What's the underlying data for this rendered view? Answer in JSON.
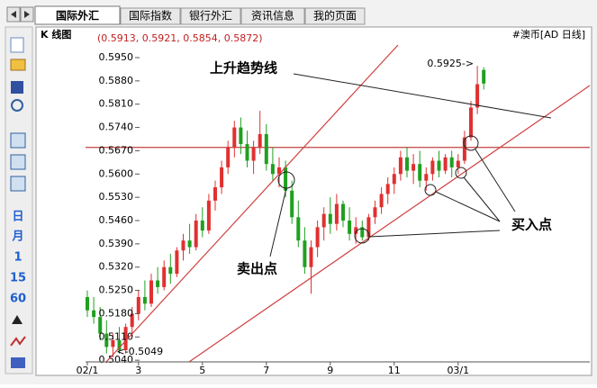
{
  "tabs": [
    "国际外汇",
    "国际指数",
    "银行外汇",
    "资讯信息",
    "我的页面"
  ],
  "toolbar": [
    "日",
    "月",
    "1",
    "15",
    "60"
  ],
  "chart_data": {
    "type": "candlestick",
    "title": "K 线图",
    "subtitle": "(0.5913, 0.5921, 0.5854, 0.5872)",
    "symbol": "#澳币[AD 日线]",
    "categories": [
      "02/1",
      null,
      null,
      null,
      null,
      null,
      null,
      null,
      "3",
      null,
      null,
      null,
      null,
      null,
      null,
      null,
      null,
      null,
      "5",
      null,
      null,
      null,
      null,
      null,
      null,
      null,
      null,
      null,
      "7",
      null,
      null,
      null,
      null,
      null,
      null,
      null,
      null,
      null,
      "9",
      null,
      null,
      null,
      null,
      null,
      null,
      null,
      null,
      null,
      "11",
      null,
      null,
      null,
      null,
      null,
      null,
      null,
      null,
      null,
      "03/1",
      null,
      null,
      null,
      null
    ],
    "open": [
      0.523,
      0.519,
      0.517,
      0.512,
      0.508,
      0.51,
      0.507,
      0.514,
      0.518,
      0.523,
      0.521,
      0.528,
      0.526,
      0.532,
      0.53,
      0.537,
      0.54,
      0.538,
      0.546,
      0.543,
      0.552,
      0.556,
      0.562,
      0.568,
      0.574,
      0.569,
      0.564,
      0.568,
      0.572,
      0.563,
      0.56,
      0.562,
      0.555,
      0.547,
      0.54,
      0.532,
      0.538,
      0.544,
      0.548,
      0.545,
      0.551,
      0.546,
      0.542,
      0.544,
      0.541,
      0.547,
      0.55,
      0.554,
      0.557,
      0.56,
      0.565,
      0.561,
      0.563,
      0.558,
      0.56,
      0.564,
      0.561,
      0.565,
      0.562,
      0.564,
      0.571,
      0.58,
      0.5913
    ],
    "high": [
      0.525,
      0.523,
      0.52,
      0.516,
      0.512,
      0.514,
      0.515,
      0.52,
      0.525,
      0.528,
      0.53,
      0.532,
      0.534,
      0.536,
      0.538,
      0.542,
      0.545,
      0.548,
      0.55,
      0.554,
      0.558,
      0.564,
      0.57,
      0.576,
      0.577,
      0.573,
      0.57,
      0.579,
      0.575,
      0.568,
      0.565,
      0.564,
      0.558,
      0.552,
      0.544,
      0.54,
      0.546,
      0.55,
      0.553,
      0.554,
      0.552,
      0.55,
      0.547,
      0.546,
      0.548,
      0.552,
      0.556,
      0.559,
      0.562,
      0.567,
      0.568,
      0.566,
      0.567,
      0.562,
      0.565,
      0.567,
      0.566,
      0.567,
      0.566,
      0.573,
      0.582,
      0.5925,
      0.5921
    ],
    "low": [
      0.517,
      0.515,
      0.51,
      0.506,
      0.5049,
      0.506,
      0.506,
      0.511,
      0.516,
      0.519,
      0.52,
      0.524,
      0.525,
      0.527,
      0.529,
      0.534,
      0.536,
      0.537,
      0.541,
      0.542,
      0.549,
      0.554,
      0.56,
      0.565,
      0.566,
      0.562,
      0.56,
      0.566,
      0.561,
      0.558,
      0.556,
      0.553,
      0.545,
      0.538,
      0.53,
      0.524,
      0.535,
      0.54,
      0.542,
      0.543,
      0.544,
      0.54,
      0.539,
      0.54,
      0.54,
      0.545,
      0.548,
      0.551,
      0.554,
      0.558,
      0.559,
      0.557,
      0.556,
      0.555,
      0.558,
      0.559,
      0.56,
      0.559,
      0.56,
      0.563,
      0.57,
      0.578,
      0.5854
    ],
    "close": [
      0.519,
      0.517,
      0.512,
      0.508,
      0.51,
      0.507,
      0.514,
      0.518,
      0.523,
      0.521,
      0.528,
      0.526,
      0.532,
      0.53,
      0.537,
      0.54,
      0.538,
      0.546,
      0.543,
      0.552,
      0.556,
      0.562,
      0.568,
      0.574,
      0.569,
      0.564,
      0.568,
      0.572,
      0.563,
      0.56,
      0.562,
      0.555,
      0.547,
      0.54,
      0.532,
      0.538,
      0.544,
      0.548,
      0.545,
      0.551,
      0.546,
      0.542,
      0.544,
      0.541,
      0.547,
      0.55,
      0.554,
      0.557,
      0.56,
      0.565,
      0.561,
      0.563,
      0.558,
      0.56,
      0.564,
      0.561,
      0.565,
      0.562,
      0.564,
      0.571,
      0.58,
      0.587,
      0.5872
    ],
    "up_color": "#e03030",
    "down_color": "#20a020",
    "ylim": [
      0.5035,
      0.6015
    ],
    "yticks": [
      {
        "value": 0.595,
        "label": "0.5950"
      },
      {
        "value": 0.588,
        "label": "0.5880"
      },
      {
        "value": 0.581,
        "label": "0.5810"
      },
      {
        "value": 0.574,
        "label": "0.5740"
      },
      {
        "value": 0.567,
        "label": "0.5670"
      },
      {
        "value": 0.56,
        "label": "0.5600"
      },
      {
        "value": 0.553,
        "label": "0.5530"
      },
      {
        "value": 0.546,
        "label": "0.5460"
      },
      {
        "value": 0.539,
        "label": "0.5390"
      },
      {
        "value": 0.532,
        "label": "0.5320"
      },
      {
        "value": 0.525,
        "label": "0.5250"
      },
      {
        "value": 0.518,
        "label": "0.5180"
      },
      {
        "value": 0.511,
        "label": "0.5110"
      },
      {
        "value": 0.504,
        "label": "0.5040"
      }
    ],
    "hline": 0.568,
    "max_label": "0.5925->",
    "min_label": "<-0.5049",
    "annotations": [
      "上升趋势线",
      "卖出点",
      "买入点"
    ]
  }
}
